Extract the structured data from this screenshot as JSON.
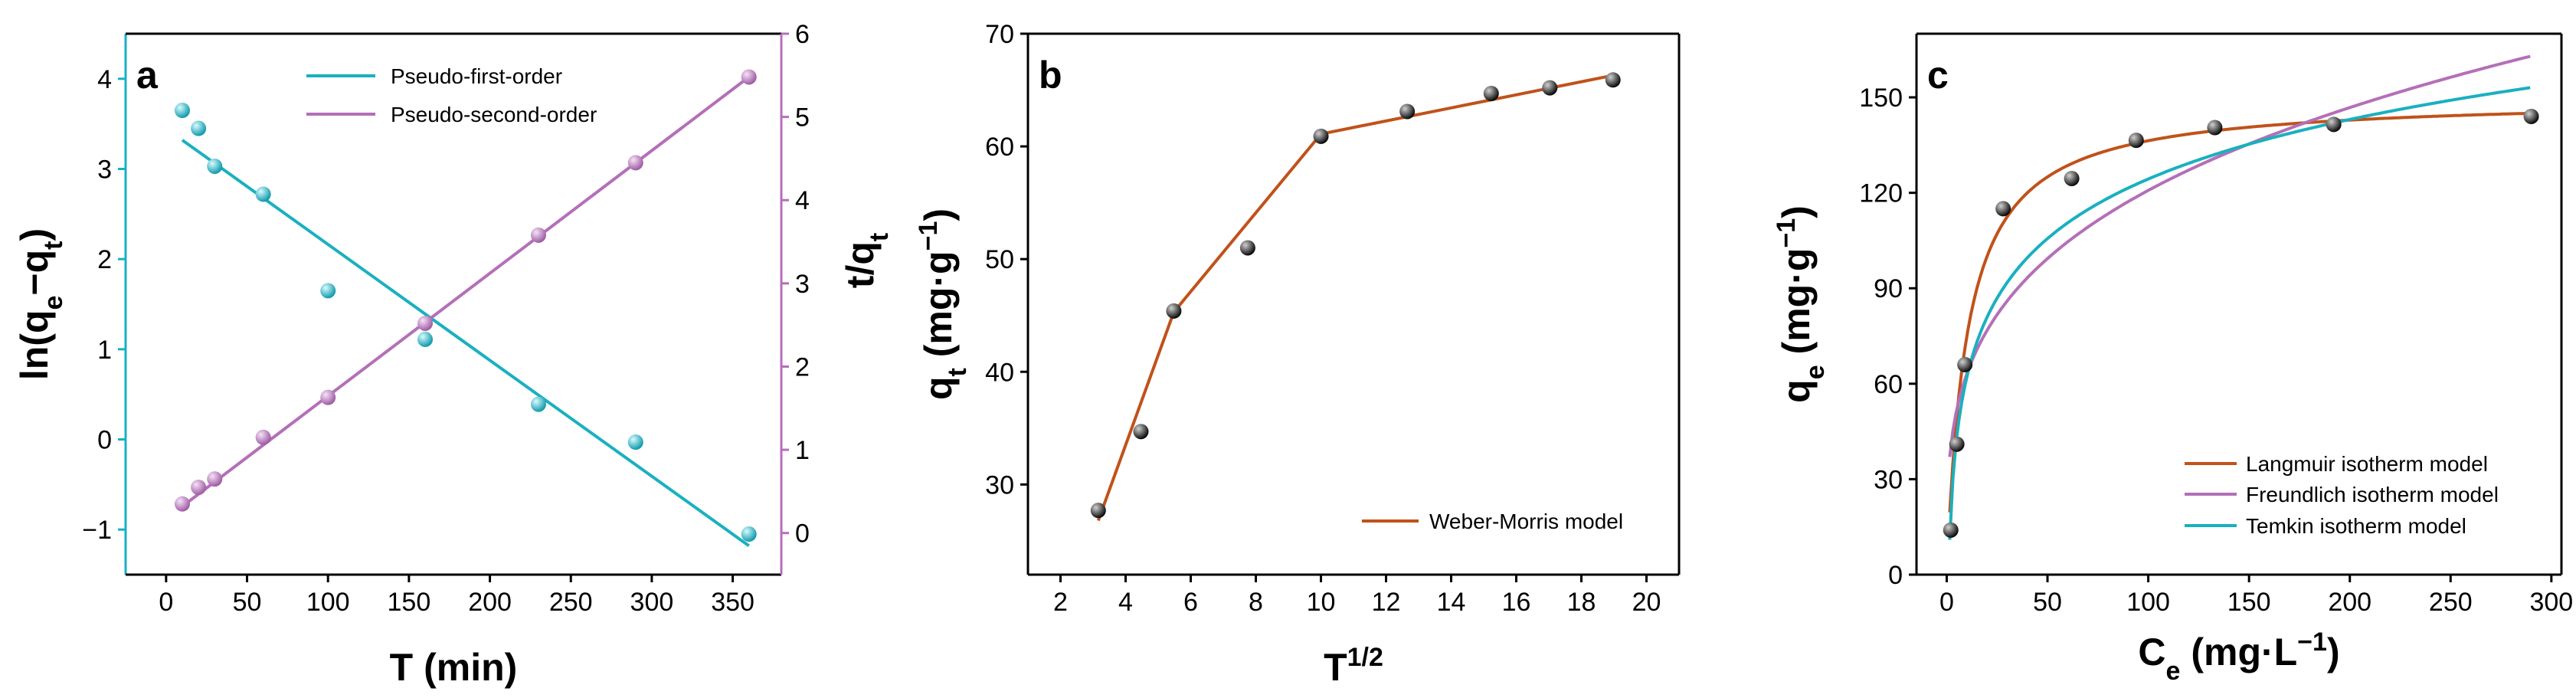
{
  "chart_data": [
    {
      "panel_label": "a",
      "type": "scatter",
      "xlabel_base": "T (min)",
      "ylabel_parts": {
        "pre": "ln(q",
        "sub1": "e",
        "mid": "−q",
        "sub2": "t",
        "post": ")"
      },
      "y2label_parts": {
        "pre": "t/q",
        "sub": "t"
      },
      "xlim": [
        -25,
        380
      ],
      "ylim": [
        -1.5,
        4.5
      ],
      "y2lim": [
        -0.5,
        6
      ],
      "xticks": [
        0,
        50,
        100,
        150,
        200,
        250,
        300,
        350
      ],
      "yticks": [
        -1,
        0,
        1,
        2,
        3,
        4
      ],
      "y2ticks": [
        0,
        1,
        2,
        3,
        4,
        5,
        6
      ],
      "legend_position": "top-right",
      "colors": {
        "first": "#1ab0c0",
        "second": "#b46fb8"
      },
      "series": [
        {
          "name": "Pseudo-first-order",
          "axis": "left",
          "x": [
            10,
            20,
            30,
            60,
            100,
            160,
            230,
            290,
            360
          ],
          "y": [
            3.65,
            3.45,
            3.03,
            2.72,
            1.65,
            1.11,
            0.39,
            -0.03,
            -1.05
          ],
          "fit": {
            "x": [
              10,
              360
            ],
            "y": [
              3.32,
              -1.18
            ]
          }
        },
        {
          "name": "Pseudo-second-order",
          "axis": "right",
          "x": [
            10,
            20,
            30,
            60,
            100,
            160,
            230,
            290,
            360
          ],
          "y": [
            0.35,
            0.55,
            0.65,
            1.15,
            1.63,
            2.52,
            3.58,
            4.45,
            5.48
          ],
          "fit": {
            "x": [
              10,
              360
            ],
            "y": [
              0.32,
              5.48
            ]
          }
        }
      ]
    },
    {
      "panel_label": "b",
      "type": "scatter",
      "xlabel_parts": {
        "base": "T",
        "sup": "1/2"
      },
      "ylabel_parts": {
        "pre": "q",
        "sub": "t",
        "mid": " (mg·g",
        "sup": "−1",
        "post": ")"
      },
      "xlim": [
        1,
        21
      ],
      "ylim": [
        22,
        70
      ],
      "xticks": [
        2,
        4,
        6,
        8,
        10,
        12,
        14,
        16,
        18,
        20
      ],
      "yticks": [
        30,
        40,
        50,
        60,
        70
      ],
      "legend_position": "bottom-right",
      "colors": {
        "fit": "#c0521a",
        "point": "#111111"
      },
      "series": [
        {
          "name": "Weber-Morris model",
          "x": [
            3.16,
            4.47,
            5.48,
            7.75,
            10.0,
            12.65,
            15.23,
            17.03,
            18.97
          ],
          "y": [
            27.7,
            34.7,
            45.4,
            51.0,
            60.9,
            63.1,
            64.7,
            65.2,
            65.9
          ],
          "fit": {
            "x": [
              3.16,
              5.48,
              10.0,
              18.97
            ],
            "y": [
              26.8,
              45.3,
              61.1,
              66.3
            ]
          }
        }
      ]
    },
    {
      "panel_label": "c",
      "type": "scatter",
      "xlabel_parts": {
        "pre": "C",
        "sub": "e",
        "mid": " (mg·L",
        "sup": "−1",
        "post": ")"
      },
      "ylabel_parts": {
        "pre": "q",
        "sub": "e",
        "mid": " (mg·g",
        "sup": "−1",
        "post": ")"
      },
      "xlim": [
        -15,
        305
      ],
      "ylim": [
        0,
        170
      ],
      "xticks": [
        0,
        50,
        100,
        150,
        200,
        250,
        300
      ],
      "yticks": [
        0,
        30,
        60,
        90,
        120,
        150
      ],
      "legend_position": "bottom-right",
      "points": {
        "x": [
          2,
          5,
          9,
          28,
          62,
          94,
          133,
          192,
          290
        ],
        "y": [
          14,
          41,
          66,
          115,
          124.5,
          136.5,
          140.5,
          141.5,
          144
        ]
      },
      "series": [
        {
          "name": "Langmuir isotherm model",
          "color": "#c0521a",
          "model": "langmuir",
          "params": {
            "qm": 150,
            "KL": 0.1
          }
        },
        {
          "name": "Freundlich isotherm model",
          "color": "#b46fb8",
          "model": "freundlich",
          "params": {
            "KF": 33,
            "n": 3.55
          }
        },
        {
          "name": "Temkin isotherm model",
          "color": "#1ab0c0",
          "model": "temkin",
          "params": {
            "B": 27,
            "KT": 1.0
          }
        }
      ]
    }
  ]
}
